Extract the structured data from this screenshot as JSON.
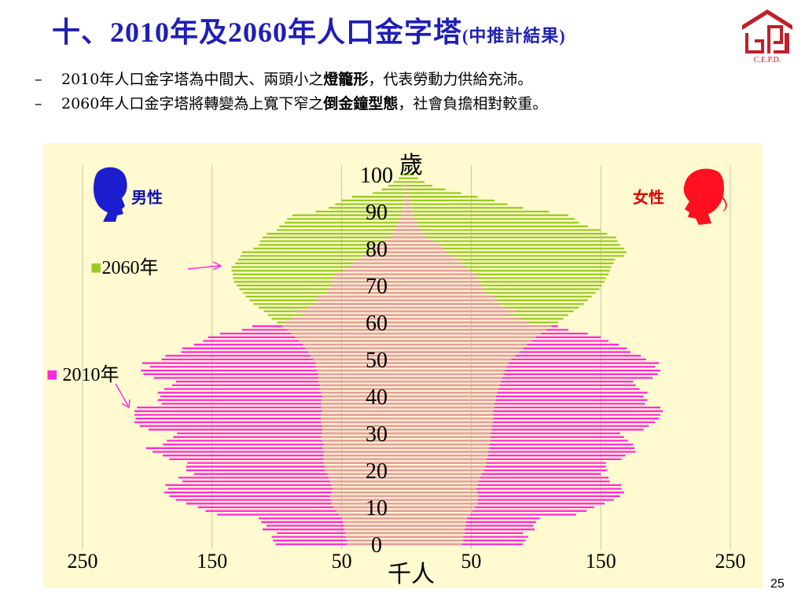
{
  "header": {
    "title_main": "十、2010年及2060年人口金字塔",
    "title_sub": "(中推計結果)",
    "logo_text": "C.E.P.D."
  },
  "bullets": [
    {
      "dash": "–",
      "pre": "2010年人口金字塔為中間大、兩頭小之",
      "bold": "燈籠形",
      "post": "，代表勞動力供給充沛。"
    },
    {
      "dash": "–",
      "pre": "2060年人口金字塔將轉變為上寬下窄之",
      "bold": "倒金鐘型態",
      "post": "，社會負擔相對較重。"
    }
  ],
  "page_number": "25",
  "colors": {
    "title": "#1f1fb4",
    "male_label": "#1010b0",
    "female_label": "#e00000",
    "male_icon": "#1d1dd0",
    "female_icon": "#ff1020",
    "series_2010": "#ff2bd8",
    "series_2060": "#99cc22",
    "series_2010_fill": "#e6a0a0",
    "chart_background": "#fffad0"
  },
  "icons": {
    "male": "male-head-icon",
    "female": "female-head-icon",
    "logo": "cepd-logo-icon"
  },
  "chart_data": {
    "type": "population-pyramid",
    "title": "",
    "ylabel": "歲",
    "xlabel": "千人",
    "yticks": [
      "0",
      "10",
      "20",
      "30",
      "40",
      "50",
      "60",
      "70",
      "80",
      "90",
      "100"
    ],
    "xticks_left": [
      "250",
      "150",
      "50"
    ],
    "xticks_right": [
      "50",
      "150",
      "250"
    ],
    "male_label": "男性",
    "female_label": "女性",
    "legend_2060": "■2060年",
    "legend_2010": "■ 2010年",
    "grid": true,
    "ages_2010": [
      0,
      1,
      2,
      3,
      4,
      5,
      6,
      7,
      8,
      9,
      10,
      11,
      12,
      13,
      14,
      15,
      16,
      17,
      18,
      19,
      20,
      21,
      22,
      23,
      24,
      25,
      26,
      27,
      28,
      29,
      30,
      31,
      32,
      33,
      34,
      35,
      36,
      37,
      38,
      39,
      40,
      41,
      42,
      43,
      44,
      45,
      46,
      47,
      48,
      49,
      50,
      51,
      52,
      53,
      54,
      55,
      56,
      57,
      58,
      59,
      60,
      61,
      62,
      63,
      64,
      65,
      66,
      67,
      68,
      69,
      70,
      71,
      72,
      73,
      74,
      75,
      76,
      77,
      78,
      79,
      80,
      81,
      82,
      83,
      84,
      85,
      86,
      87,
      88,
      89,
      90,
      91,
      92,
      93,
      94,
      95,
      96,
      97,
      98,
      99,
      100
    ],
    "male_2010": [
      101,
      103,
      104,
      100,
      111,
      108,
      112,
      114,
      146,
      155,
      161,
      170,
      178,
      183,
      187,
      184,
      186,
      173,
      176,
      164,
      170,
      170,
      169,
      183,
      188,
      196,
      201,
      188,
      185,
      180,
      177,
      199,
      206,
      210,
      209,
      210,
      210,
      208,
      189,
      192,
      190,
      192,
      187,
      181,
      178,
      195,
      203,
      205,
      198,
      204,
      189,
      186,
      174,
      173,
      164,
      157,
      153,
      144,
      127,
      119,
      94,
      89,
      79,
      85,
      76,
      72,
      69,
      69,
      61,
      61,
      58,
      57,
      57,
      55,
      49,
      44,
      42,
      38,
      33,
      27,
      26,
      23,
      17,
      12,
      11,
      9,
      8,
      7,
      5,
      4,
      3,
      3,
      2,
      2,
      1,
      1,
      1,
      1,
      1,
      0,
      0
    ],
    "female_2010": [
      90,
      92,
      94,
      90,
      99,
      98,
      100,
      103,
      131,
      139,
      145,
      153,
      160,
      165,
      168,
      166,
      166,
      157,
      156,
      150,
      155,
      154,
      154,
      166,
      169,
      177,
      176,
      175,
      171,
      168,
      165,
      183,
      187,
      192,
      195,
      196,
      198,
      196,
      184,
      186,
      183,
      186,
      180,
      177,
      175,
      190,
      194,
      196,
      192,
      195,
      185,
      181,
      173,
      170,
      164,
      156,
      150,
      140,
      125,
      117,
      94,
      88,
      80,
      85,
      77,
      72,
      70,
      68,
      61,
      60,
      58,
      56,
      55,
      53,
      49,
      45,
      43,
      40,
      36,
      31,
      29,
      26,
      20,
      15,
      13,
      11,
      9,
      8,
      6,
      5,
      4,
      3,
      3,
      2,
      2,
      1,
      1,
      1,
      1,
      0,
      0
    ],
    "male_2060": [
      46,
      46,
      47,
      47,
      48,
      48,
      49,
      50,
      52,
      54,
      56,
      58,
      58,
      59,
      58,
      57,
      58,
      59,
      60,
      61,
      63,
      63,
      64,
      64,
      64,
      64,
      65,
      64,
      65,
      66,
      65,
      65,
      65,
      66,
      66,
      66,
      65,
      66,
      66,
      66,
      65,
      66,
      67,
      67,
      68,
      68,
      68,
      69,
      70,
      70,
      72,
      74,
      76,
      78,
      80,
      83,
      86,
      89,
      92,
      96,
      100,
      104,
      107,
      110,
      114,
      118,
      121,
      124,
      126,
      129,
      131,
      133,
      134,
      134,
      135,
      135,
      132,
      130,
      128,
      127,
      118,
      114,
      113,
      111,
      108,
      100,
      98,
      94,
      92,
      88,
      70,
      60,
      55,
      50,
      42,
      26,
      19,
      14,
      10,
      6,
      4
    ],
    "female_2060": [
      43,
      44,
      44,
      45,
      45,
      46,
      46,
      47,
      49,
      51,
      53,
      55,
      55,
      56,
      55,
      54,
      55,
      56,
      57,
      58,
      60,
      61,
      62,
      62,
      63,
      63,
      64,
      64,
      65,
      65,
      65,
      66,
      66,
      67,
      67,
      67,
      67,
      68,
      68,
      69,
      69,
      70,
      71,
      72,
      73,
      74,
      75,
      76,
      77,
      79,
      81,
      84,
      87,
      90,
      93,
      97,
      100,
      104,
      108,
      112,
      117,
      121,
      125,
      129,
      133,
      137,
      140,
      143,
      146,
      149,
      151,
      153,
      154,
      156,
      157,
      158,
      160,
      161,
      168,
      170,
      168,
      165,
      163,
      162,
      155,
      150,
      140,
      133,
      130,
      125,
      110,
      90,
      78,
      68,
      55,
      42,
      30,
      20,
      14,
      9,
      6
    ]
  }
}
